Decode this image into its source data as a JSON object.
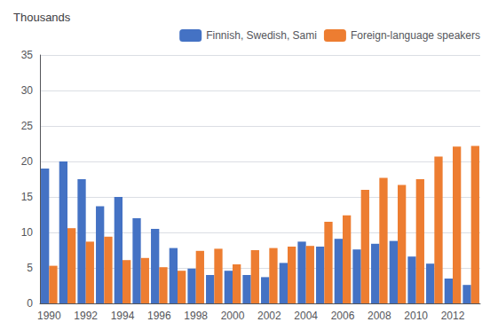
{
  "chart_data": {
    "type": "bar",
    "title": "Thousands",
    "categories": [
      "1990",
      null,
      "1992",
      null,
      "1994",
      null,
      "1996",
      null,
      "1998",
      null,
      "2000",
      null,
      "2002",
      null,
      "2004",
      null,
      "2006",
      null,
      "2008",
      null,
      "2010",
      null,
      "2012",
      null
    ],
    "series": [
      {
        "name": "Finnish, Swedish, Sami",
        "color": "#4472c4",
        "values": [
          19.0,
          20.0,
          17.5,
          13.7,
          15.0,
          12.0,
          10.5,
          7.8,
          4.9,
          4.0,
          4.6,
          4.0,
          3.7,
          5.7,
          8.7,
          8.0,
          9.1,
          7.6,
          8.4,
          8.8,
          6.6,
          5.6,
          3.5,
          2.6
        ]
      },
      {
        "name": "Foreign-language speakers",
        "color": "#ed7d31",
        "values": [
          5.3,
          10.6,
          8.7,
          9.4,
          6.1,
          6.4,
          5.1,
          4.6,
          7.4,
          7.7,
          5.5,
          7.5,
          7.8,
          8.0,
          8.1,
          11.5,
          12.4,
          16.0,
          17.7,
          16.7,
          17.5,
          20.7,
          22.1,
          22.2
        ]
      }
    ],
    "ylim": [
      0,
      35
    ],
    "yticks": [
      0,
      5,
      10,
      15,
      20,
      25,
      30,
      35
    ],
    "grid": true,
    "legend": "upper right"
  }
}
